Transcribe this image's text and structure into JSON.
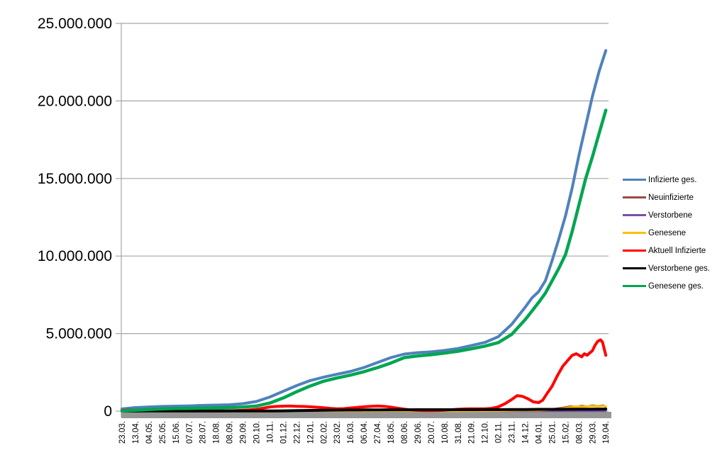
{
  "chart_data": {
    "type": "line",
    "title": "",
    "xlabel": "",
    "ylabel": "",
    "ylim": [
      0,
      25000000
    ],
    "values_in": "millions",
    "grid": "horizontal",
    "legend_position": "right",
    "y_ticks": [
      {
        "value": 25000000,
        "label": "25.000.000"
      },
      {
        "value": 20000000,
        "label": "20.000.000"
      },
      {
        "value": 15000000,
        "label": "15.000.000"
      },
      {
        "value": 10000000,
        "label": "10.000.000"
      },
      {
        "value": 5000000,
        "label": "5.000.000"
      },
      {
        "value": 0,
        "label": "0"
      }
    ],
    "x_labels": [
      "23.03.",
      "13.04.",
      "04.05.",
      "25.05.",
      "15.06.",
      "07.07.",
      "28.07.",
      "18.08.",
      "08.09.",
      "29.09.",
      "20.10.",
      "10.11.",
      "01.12.",
      "22.12.",
      "12.01.",
      "02.02.",
      "23.02.",
      "16.03.",
      "06.04.",
      "27.04.",
      "18.05.",
      "08.06.",
      "29.06.",
      "20.07.",
      "10.08.",
      "31.08.",
      "21.09.",
      "12.10.",
      "02.11.",
      "23.11.",
      "14.12.",
      "04.01.",
      "25.01.",
      "15.02.",
      "08.03.",
      "29.03.",
      "19.04."
    ],
    "series": [
      {
        "name": "Infizierte ges.",
        "color": "#4F81BD",
        "width": 4,
        "points": [
          [
            0,
            0.14
          ],
          [
            1,
            0.23
          ],
          [
            2,
            0.27
          ],
          [
            3,
            0.3
          ],
          [
            4,
            0.32
          ],
          [
            5,
            0.34
          ],
          [
            6,
            0.37
          ],
          [
            7,
            0.39
          ],
          [
            8,
            0.41
          ],
          [
            9,
            0.48
          ],
          [
            10,
            0.62
          ],
          [
            11,
            0.91
          ],
          [
            12,
            1.28
          ],
          [
            13,
            1.65
          ],
          [
            14,
            1.97
          ],
          [
            15,
            2.19
          ],
          [
            16,
            2.38
          ],
          [
            17,
            2.56
          ],
          [
            18,
            2.81
          ],
          [
            19,
            3.13
          ],
          [
            20,
            3.45
          ],
          [
            21,
            3.68
          ],
          [
            22,
            3.77
          ],
          [
            23,
            3.82
          ],
          [
            24,
            3.91
          ],
          [
            25,
            4.04
          ],
          [
            26,
            4.23
          ],
          [
            27,
            4.43
          ],
          [
            28,
            4.8
          ],
          [
            29,
            5.6
          ],
          [
            30,
            6.7
          ],
          [
            30.5,
            7.3
          ],
          [
            31,
            7.7
          ],
          [
            31.5,
            8.4
          ],
          [
            32,
            9.7
          ],
          [
            32.5,
            11.1
          ],
          [
            33,
            12.6
          ],
          [
            33.5,
            14.4
          ],
          [
            34,
            16.5
          ],
          [
            34.5,
            18.4
          ],
          [
            35,
            20.3
          ],
          [
            35.5,
            21.9
          ],
          [
            36,
            23.25
          ]
        ]
      },
      {
        "name": "Neuinfizierte",
        "color": "#9B4A41",
        "width": 2.5,
        "points": [
          [
            0,
            0.004
          ],
          [
            2,
            0.005
          ],
          [
            4,
            0.003
          ],
          [
            6,
            0.003
          ],
          [
            8,
            0.004
          ],
          [
            10,
            0.014
          ],
          [
            12,
            0.024
          ],
          [
            14,
            0.019
          ],
          [
            16,
            0.011
          ],
          [
            18,
            0.015
          ],
          [
            20,
            0.019
          ],
          [
            22,
            0.009
          ],
          [
            24,
            0.007
          ],
          [
            26,
            0.011
          ],
          [
            28,
            0.038
          ],
          [
            29,
            0.055
          ],
          [
            30,
            0.06
          ],
          [
            31,
            0.05
          ],
          [
            32,
            0.13
          ],
          [
            32.5,
            0.19
          ],
          [
            33,
            0.26
          ],
          [
            33.4,
            0.32
          ],
          [
            33.8,
            0.28
          ],
          [
            34.2,
            0.35
          ],
          [
            34.6,
            0.3
          ],
          [
            35,
            0.38
          ],
          [
            35.4,
            0.32
          ],
          [
            35.8,
            0.38
          ],
          [
            36,
            0.26
          ]
        ]
      },
      {
        "name": "Verstorbene",
        "color": "#7A4FA5",
        "width": 2.5,
        "points": [
          [
            0,
            0.002
          ],
          [
            36,
            0.002
          ]
        ]
      },
      {
        "name": "Genesene",
        "color": "#FFC000",
        "width": 3,
        "points": [
          [
            0,
            0.003
          ],
          [
            2,
            0.005
          ],
          [
            4,
            0.004
          ],
          [
            6,
            0.003
          ],
          [
            8,
            0.004
          ],
          [
            10,
            0.012
          ],
          [
            12,
            0.02
          ],
          [
            14,
            0.02
          ],
          [
            16,
            0.014
          ],
          [
            18,
            0.015
          ],
          [
            20,
            0.02
          ],
          [
            22,
            0.01
          ],
          [
            24,
            0.006
          ],
          [
            26,
            0.008
          ],
          [
            28,
            0.02
          ],
          [
            29,
            0.04
          ],
          [
            30,
            0.05
          ],
          [
            31,
            0.05
          ],
          [
            32,
            0.09
          ],
          [
            32.5,
            0.14
          ],
          [
            33,
            0.2
          ],
          [
            33.4,
            0.26
          ],
          [
            33.8,
            0.3
          ],
          [
            34.2,
            0.28
          ],
          [
            34.6,
            0.31
          ],
          [
            35,
            0.33
          ],
          [
            35.4,
            0.3
          ],
          [
            35.8,
            0.34
          ],
          [
            36,
            0.3
          ]
        ]
      },
      {
        "name": "Aktuell Infizierte",
        "color": "#FF0000",
        "width": 4,
        "points": [
          [
            0,
            0.04
          ],
          [
            0.5,
            0.07
          ],
          [
            1,
            0.07
          ],
          [
            1.5,
            0.05
          ],
          [
            2,
            0.04
          ],
          [
            2.5,
            0.03
          ],
          [
            3,
            0.02
          ],
          [
            4,
            0.015
          ],
          [
            5,
            0.01
          ],
          [
            6,
            0.01
          ],
          [
            7,
            0.015
          ],
          [
            8,
            0.02
          ],
          [
            9,
            0.05
          ],
          [
            9.5,
            0.08
          ],
          [
            10,
            0.12
          ],
          [
            10.5,
            0.19
          ],
          [
            11,
            0.27
          ],
          [
            11.5,
            0.3
          ],
          [
            12,
            0.32
          ],
          [
            12.5,
            0.33
          ],
          [
            13,
            0.31
          ],
          [
            13.5,
            0.3
          ],
          [
            14,
            0.28
          ],
          [
            14.5,
            0.25
          ],
          [
            15,
            0.22
          ],
          [
            15.5,
            0.18
          ],
          [
            16,
            0.15
          ],
          [
            16.5,
            0.16
          ],
          [
            17,
            0.2
          ],
          [
            17.5,
            0.24
          ],
          [
            18,
            0.28
          ],
          [
            18.5,
            0.31
          ],
          [
            19,
            0.33
          ],
          [
            19.5,
            0.31
          ],
          [
            20,
            0.26
          ],
          [
            20.5,
            0.19
          ],
          [
            21,
            0.13
          ],
          [
            21.5,
            0.08
          ],
          [
            22,
            0.05
          ],
          [
            22.5,
            0.035
          ],
          [
            23,
            0.03
          ],
          [
            23.5,
            0.04
          ],
          [
            24,
            0.06
          ],
          [
            24.5,
            0.09
          ],
          [
            25,
            0.12
          ],
          [
            25.5,
            0.14
          ],
          [
            26,
            0.15
          ],
          [
            26.5,
            0.15
          ],
          [
            27,
            0.15
          ],
          [
            27.5,
            0.18
          ],
          [
            28,
            0.28
          ],
          [
            28.5,
            0.48
          ],
          [
            29,
            0.75
          ],
          [
            29.4,
            1.0
          ],
          [
            29.8,
            0.95
          ],
          [
            30.2,
            0.8
          ],
          [
            30.6,
            0.6
          ],
          [
            31,
            0.55
          ],
          [
            31.3,
            0.7
          ],
          [
            31.6,
            1.1
          ],
          [
            32,
            1.6
          ],
          [
            32.4,
            2.3
          ],
          [
            32.8,
            2.9
          ],
          [
            33.2,
            3.3
          ],
          [
            33.5,
            3.6
          ],
          [
            33.8,
            3.7
          ],
          [
            34,
            3.6
          ],
          [
            34.2,
            3.5
          ],
          [
            34.4,
            3.7
          ],
          [
            34.6,
            3.6
          ],
          [
            35,
            3.9
          ],
          [
            35.2,
            4.25
          ],
          [
            35.4,
            4.5
          ],
          [
            35.6,
            4.6
          ],
          [
            35.75,
            4.45
          ],
          [
            36,
            3.6
          ]
        ]
      },
      {
        "name": "Verstorbene ges.",
        "color": "#000000",
        "width": 4,
        "points": [
          [
            0,
            0.002
          ],
          [
            1,
            0.004
          ],
          [
            2,
            0.007
          ],
          [
            3,
            0.008
          ],
          [
            4,
            0.009
          ],
          [
            5,
            0.009
          ],
          [
            6,
            0.009
          ],
          [
            7,
            0.009
          ],
          [
            8,
            0.009
          ],
          [
            9,
            0.01
          ],
          [
            10,
            0.01
          ],
          [
            11,
            0.013
          ],
          [
            12,
            0.019
          ],
          [
            13,
            0.03
          ],
          [
            14,
            0.044
          ],
          [
            15,
            0.058
          ],
          [
            16,
            0.068
          ],
          [
            17,
            0.074
          ],
          [
            18,
            0.078
          ],
          [
            19,
            0.082
          ],
          [
            20,
            0.086
          ],
          [
            21,
            0.089
          ],
          [
            22,
            0.09
          ],
          [
            23,
            0.091
          ],
          [
            24,
            0.092
          ],
          [
            25,
            0.092
          ],
          [
            26,
            0.093
          ],
          [
            27,
            0.094
          ],
          [
            28,
            0.096
          ],
          [
            29,
            0.1
          ],
          [
            30,
            0.105
          ],
          [
            31,
            0.112
          ],
          [
            32,
            0.116
          ],
          [
            33,
            0.121
          ],
          [
            34,
            0.125
          ],
          [
            35,
            0.129
          ],
          [
            36,
            0.133
          ]
        ]
      },
      {
        "name": "Genesene ges.",
        "color": "#00A651",
        "width": 4.5,
        "points": [
          [
            0,
            0.01
          ],
          [
            1,
            0.06
          ],
          [
            2,
            0.1
          ],
          [
            3,
            0.14
          ],
          [
            4,
            0.17
          ],
          [
            5,
            0.18
          ],
          [
            6,
            0.19
          ],
          [
            7,
            0.21
          ],
          [
            8,
            0.23
          ],
          [
            9,
            0.26
          ],
          [
            10,
            0.33
          ],
          [
            11,
            0.52
          ],
          [
            12,
            0.85
          ],
          [
            13,
            1.25
          ],
          [
            14,
            1.62
          ],
          [
            15,
            1.93
          ],
          [
            16,
            2.14
          ],
          [
            17,
            2.32
          ],
          [
            18,
            2.54
          ],
          [
            19,
            2.8
          ],
          [
            20,
            3.1
          ],
          [
            21,
            3.45
          ],
          [
            22,
            3.56
          ],
          [
            23,
            3.64
          ],
          [
            24,
            3.74
          ],
          [
            25,
            3.86
          ],
          [
            26,
            4.02
          ],
          [
            27,
            4.19
          ],
          [
            28,
            4.42
          ],
          [
            29,
            4.95
          ],
          [
            30,
            5.9
          ],
          [
            30.5,
            6.45
          ],
          [
            31,
            7.0
          ],
          [
            31.5,
            7.6
          ],
          [
            32,
            8.4
          ],
          [
            32.5,
            9.2
          ],
          [
            33,
            10.1
          ],
          [
            33.5,
            11.6
          ],
          [
            34,
            13.3
          ],
          [
            34.5,
            15.0
          ],
          [
            35,
            16.4
          ],
          [
            35.5,
            17.9
          ],
          [
            36,
            19.4
          ]
        ]
      }
    ],
    "style_colors": {
      "gridline": "#A6A6A6",
      "axis_line": "#A6A6A6",
      "bottom_band": "#969696",
      "label_text": "#000000"
    }
  }
}
